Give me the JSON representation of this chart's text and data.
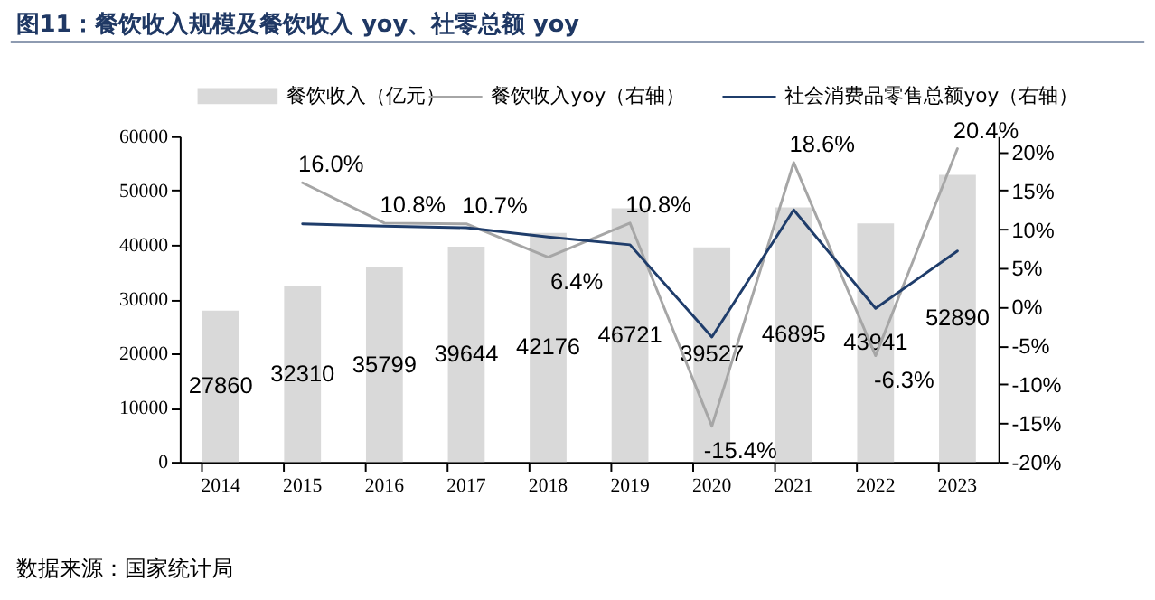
{
  "chart_data": {
    "type": "bar",
    "title": "图11：餐饮收入规模及餐饮收入 yoy、社零总额 yoy",
    "annotations": [
      "数据来源：国家统计局"
    ],
    "categories": [
      "2014",
      "2015",
      "2016",
      "2017",
      "2018",
      "2019",
      "2020",
      "2021",
      "2022",
      "2023"
    ],
    "series": [
      {
        "name": "餐饮收入（亿元）",
        "color": "#d9d9d9",
        "values": [
          27860,
          32310,
          35799,
          39644,
          42176,
          46721,
          39527,
          46895,
          43941,
          52890
        ],
        "value_labels": [
          "27860",
          "32310",
          "35799",
          "39644",
          "42176",
          "46721",
          "39527",
          "46895",
          "43941",
          "52890"
        ]
      },
      {
        "name": "餐饮收入yoy（右轴）",
        "type": "line",
        "axis": "y2",
        "color": "#a6a6a6",
        "values": [
          null,
          16.0,
          10.8,
          10.7,
          6.4,
          10.8,
          -15.4,
          18.6,
          -6.3,
          20.4
        ],
        "value_labels": [
          null,
          "16.0%",
          "10.8%",
          "10.7%",
          "6.4%",
          "10.8%",
          "-15.4%",
          "18.6%",
          "-6.3%",
          "20.4%"
        ]
      },
      {
        "name": "社会消费品零售总额yoy（右轴）",
        "type": "line",
        "axis": "y2",
        "color": "#1f3d6b",
        "values": [
          null,
          10.7,
          10.4,
          10.2,
          9.0,
          8.0,
          -3.9,
          12.5,
          -0.2,
          7.2
        ]
      }
    ],
    "ylim": [
      0,
      60000
    ],
    "yticks": [
      0,
      10000,
      20000,
      30000,
      40000,
      50000,
      60000
    ],
    "y2lim": [
      -20,
      22
    ],
    "y2ticks": [
      {
        "value": -20,
        "label": "-20%"
      },
      {
        "value": -15,
        "label": "-15%"
      },
      {
        "value": -10,
        "label": "-10%"
      },
      {
        "value": -5,
        "label": "-5%"
      },
      {
        "value": 0,
        "label": "0%"
      },
      {
        "value": 5,
        "label": "5%"
      },
      {
        "value": 10,
        "label": "10%"
      },
      {
        "value": 15,
        "label": "15%"
      },
      {
        "value": 20,
        "label": "20%"
      }
    ],
    "legend": "top",
    "grid": false,
    "line_style": "solid",
    "marker": "none"
  }
}
